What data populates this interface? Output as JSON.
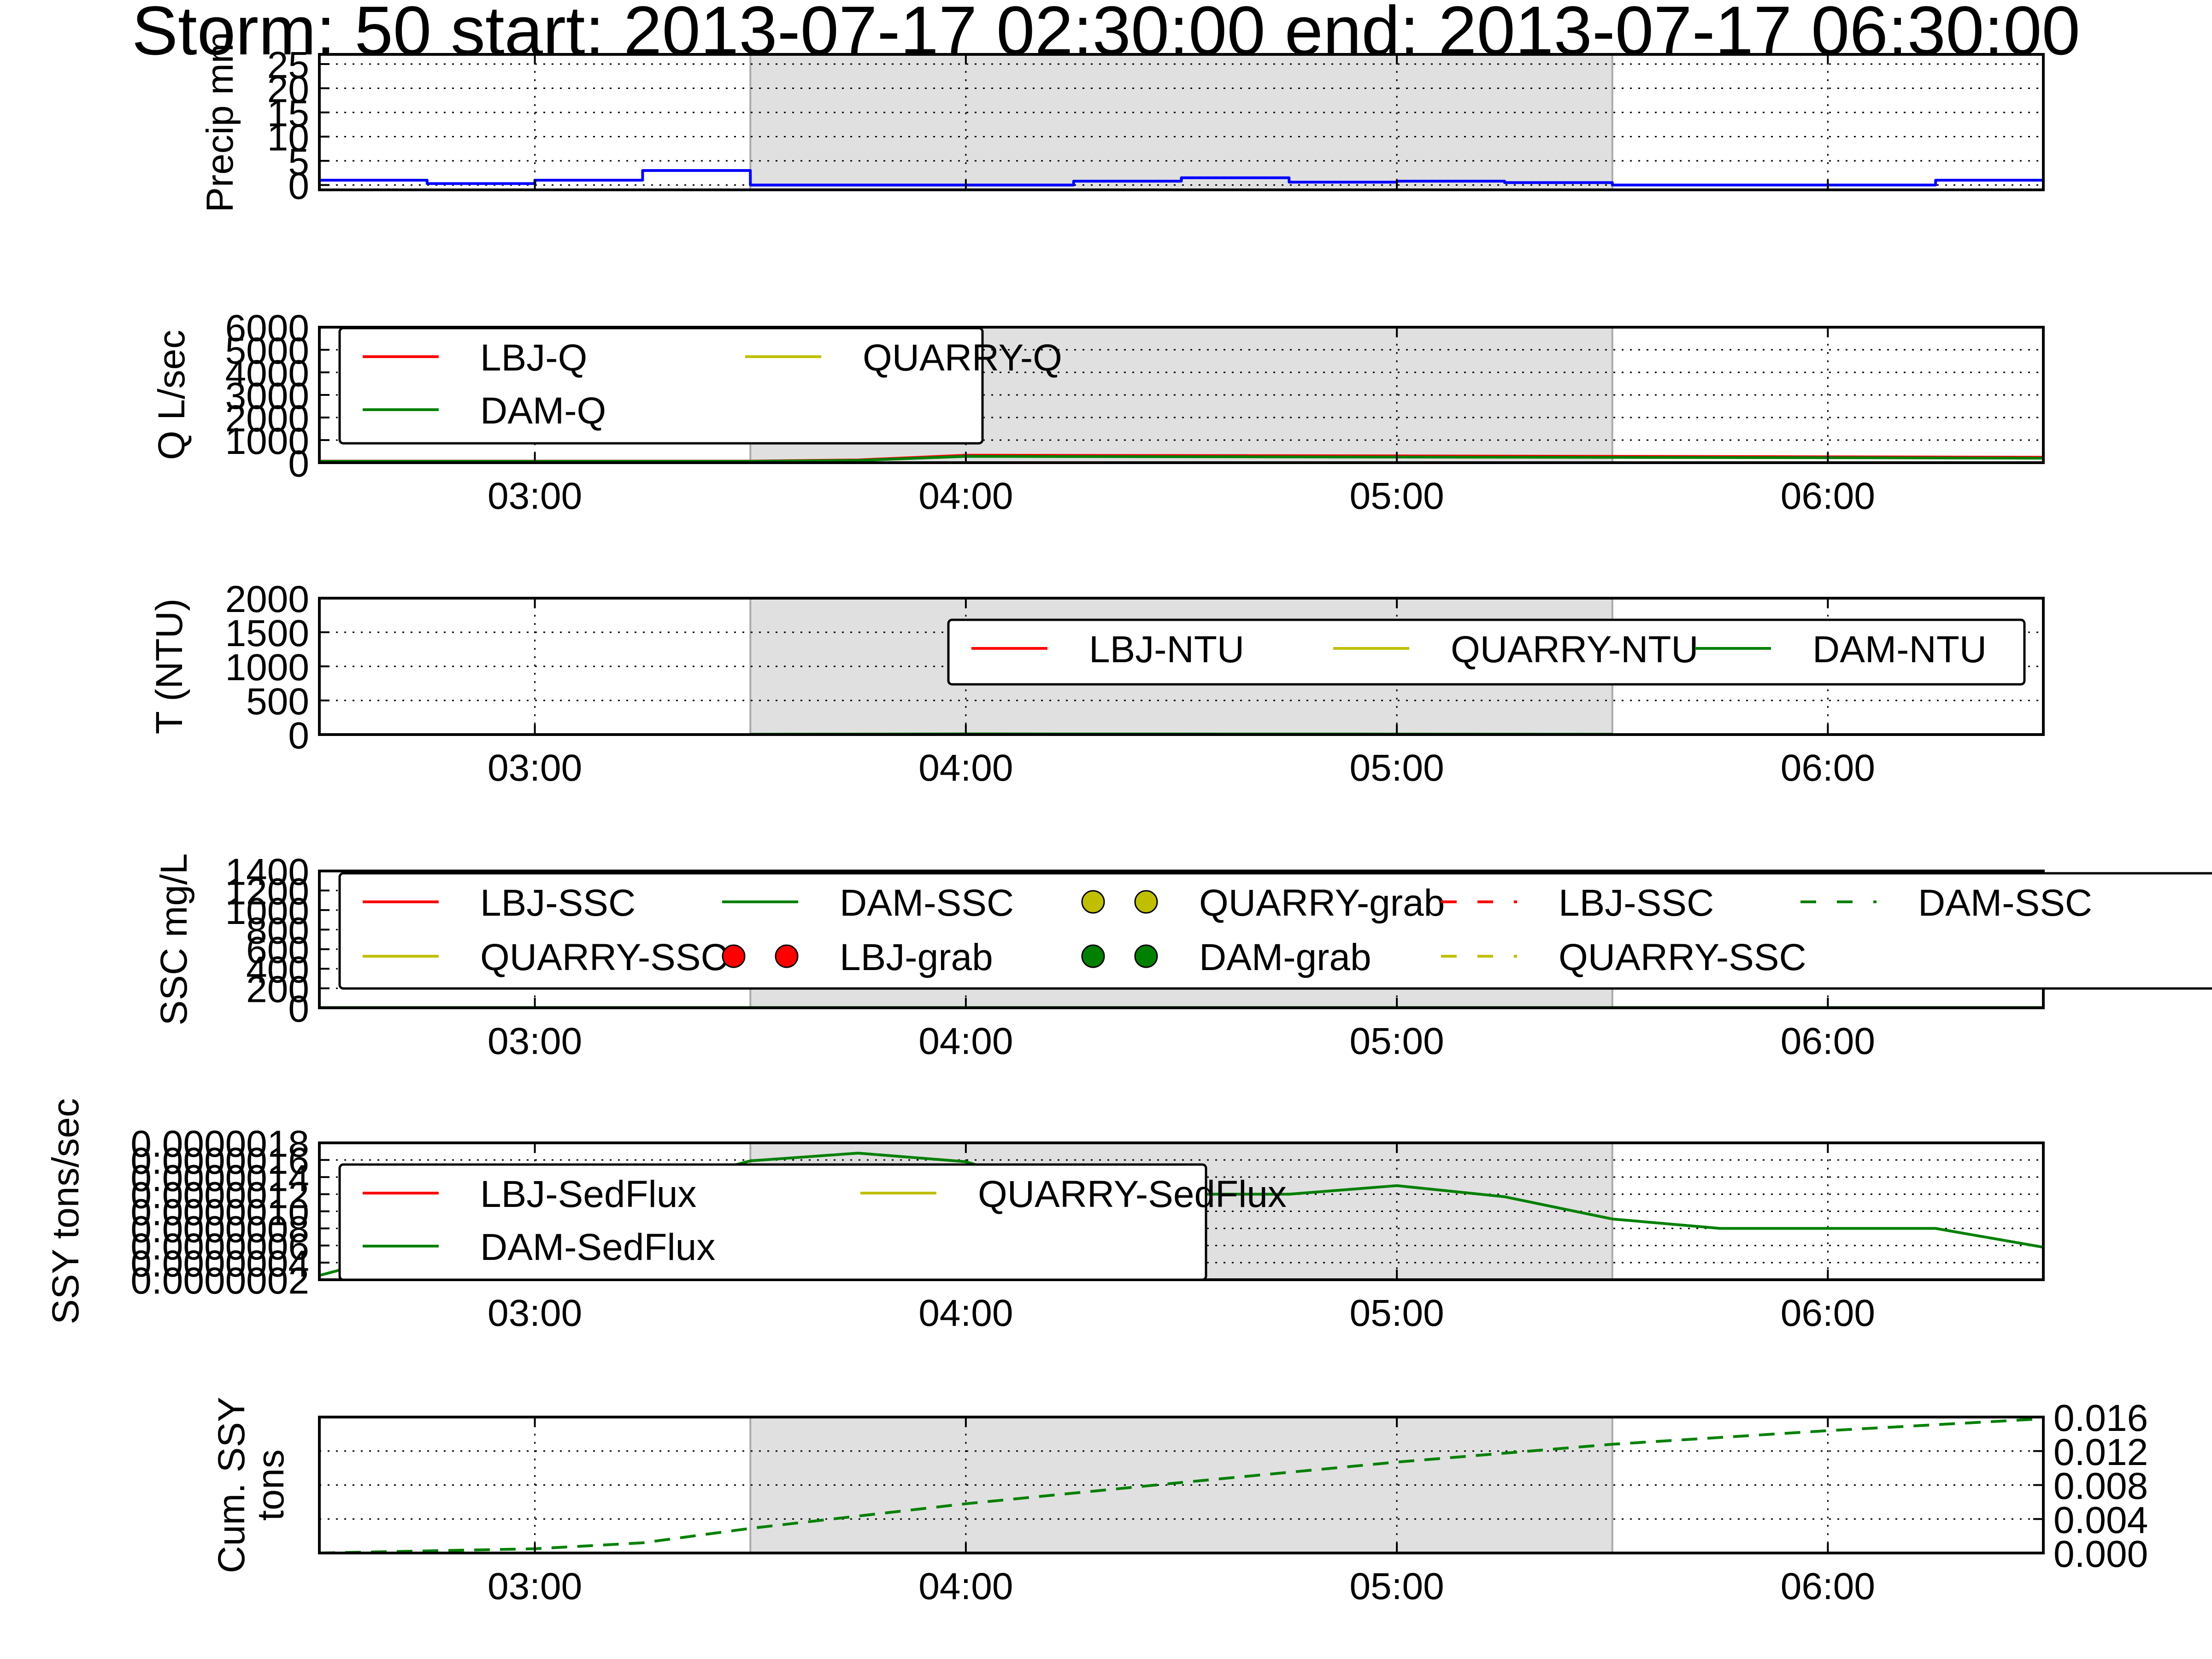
{
  "title": "Storm: 50 start: 2013-07-17 02:30:00 end: 2013-07-17 06:30:00",
  "time_axis": {
    "start": "02:30",
    "end": "06:30",
    "ticks": [
      "03:00",
      "04:00",
      "05:00",
      "06:00"
    ]
  },
  "shaded_interval": {
    "start": "03:30",
    "end": "05:30"
  },
  "colors": {
    "LBJ": "#ff0000",
    "QUARRY": "#bfbf00",
    "DAM": "#008000",
    "precip": "#0000ff",
    "shade": "#e0e0e0"
  },
  "chart_data": [
    {
      "id": "precip",
      "type": "line",
      "drawstyle": "steps-post",
      "ylabel": "Precip mm",
      "yticks": [
        "0",
        "5",
        "10",
        "15",
        "20",
        "25"
      ],
      "ylim": [
        -1,
        27
      ],
      "show_xticklabels": false,
      "legend": [],
      "series": [
        {
          "color": "#0000ff",
          "x": [
            "02:30",
            "02:45",
            "03:00",
            "03:15",
            "03:30",
            "03:45",
            "04:00",
            "04:15",
            "04:30",
            "04:45",
            "05:00",
            "05:15",
            "05:30",
            "05:45",
            "06:00",
            "06:15",
            "06:30"
          ],
          "y": [
            1.0,
            0.3,
            1.0,
            3.0,
            0.0,
            0.0,
            0.0,
            0.8,
            1.5,
            0.6,
            0.8,
            0.5,
            0.0,
            0.0,
            0.0,
            1.0,
            1.0
          ]
        }
      ]
    },
    {
      "id": "q",
      "type": "line",
      "ylabel": "Q L/sec",
      "yticks": [
        "0",
        "1000",
        "2000",
        "3000",
        "4000",
        "5000",
        "6000"
      ],
      "ylim": [
        0,
        6000
      ],
      "show_xticklabels": true,
      "legend": [
        {
          "label": "LBJ-Q",
          "color": "#ff0000",
          "style": "line"
        },
        {
          "label": "DAM-Q",
          "color": "#008000",
          "style": "line"
        },
        {
          "label": "QUARRY-Q",
          "color": "#bfbf00",
          "style": "line"
        }
      ],
      "legend_cols": 2,
      "legend_loc": "upper left",
      "series": [
        {
          "name": "LBJ-Q",
          "color": "#ff0000",
          "x": [
            "02:30",
            "03:30",
            "03:45",
            "04:00",
            "05:00",
            "06:00",
            "06:30"
          ],
          "y": [
            70,
            70,
            120,
            330,
            300,
            260,
            240
          ]
        },
        {
          "name": "DAM-Q",
          "color": "#008000",
          "x": [
            "02:30",
            "03:30",
            "03:45",
            "04:00",
            "05:00",
            "06:00",
            "06:30"
          ],
          "y": [
            60,
            60,
            100,
            280,
            250,
            220,
            200
          ]
        }
      ]
    },
    {
      "id": "ntu",
      "type": "line",
      "ylabel": "T (NTU)",
      "yticks": [
        "0",
        "500",
        "1000",
        "1500",
        "2000"
      ],
      "ylim": [
        0,
        2000
      ],
      "show_xticklabels": true,
      "legend": [
        {
          "label": "LBJ-NTU",
          "color": "#ff0000",
          "style": "line"
        },
        {
          "label": "QUARRY-NTU",
          "color": "#bfbf00",
          "style": "line"
        },
        {
          "label": "DAM-NTU",
          "color": "#008000",
          "style": "line"
        }
      ],
      "legend_cols": 3,
      "legend_loc": "upper right",
      "series": [
        {
          "name": "DAM-NTU",
          "color": "#008000",
          "x": [
            "03:30",
            "04:00",
            "05:00",
            "05:30"
          ],
          "y": [
            5,
            10,
            8,
            5
          ]
        }
      ]
    },
    {
      "id": "ssc",
      "type": "line",
      "ylabel": "SSC mg/L",
      "yticks": [
        "0",
        "200",
        "400",
        "600",
        "800",
        "1000",
        "1200",
        "1400"
      ],
      "ylim": [
        0,
        1400
      ],
      "show_xticklabels": true,
      "legend": [
        {
          "label": "LBJ-SSC",
          "color": "#ff0000",
          "style": "line"
        },
        {
          "label": "QUARRY-SSC",
          "color": "#bfbf00",
          "style": "line"
        },
        {
          "label": "DAM-SSC",
          "color": "#008000",
          "style": "line"
        },
        {
          "label": "LBJ-grab",
          "color": "#ff0000",
          "style": "marker"
        },
        {
          "label": "QUARRY-grab",
          "color": "#bfbf00",
          "style": "marker"
        },
        {
          "label": "DAM-grab",
          "color": "#008000",
          "style": "marker"
        },
        {
          "label": "LBJ-SSC",
          "color": "#ff0000",
          "style": "dash"
        },
        {
          "label": "QUARRY-SSC",
          "color": "#bfbf00",
          "style": "dash"
        },
        {
          "label": "DAM-SSC",
          "color": "#008000",
          "style": "dash"
        }
      ],
      "legend_cols": 5,
      "legend_loc": "upper left",
      "series": [
        {
          "name": "DAM-SSC",
          "color": "#008000",
          "x": [
            "02:30",
            "06:30"
          ],
          "y": [
            3,
            3
          ]
        }
      ]
    },
    {
      "id": "sedflux",
      "type": "line",
      "ylabel": "SSY tons/sec",
      "yticks": [
        "0.0000002",
        "0.0000004",
        "0.0000006",
        "0.0000008",
        "0.0000010",
        "0.0000012",
        "0.0000014",
        "0.0000016",
        "0.0000018"
      ],
      "ylim": [
        2e-07,
        1.8e-06
      ],
      "show_xticklabels": true,
      "legend": [
        {
          "label": "LBJ-SedFlux",
          "color": "#ff0000",
          "style": "line"
        },
        {
          "label": "DAM-SedFlux",
          "color": "#008000",
          "style": "line"
        },
        {
          "label": "QUARRY-SedFlux",
          "color": "#bfbf00",
          "style": "line"
        }
      ],
      "legend_cols": 2,
      "legend_loc": "upper left",
      "series": [
        {
          "name": "DAM-SedFlux",
          "color": "#008000",
          "x": [
            "02:30",
            "03:30",
            "03:45",
            "04:00",
            "04:15",
            "04:30",
            "04:45",
            "05:00",
            "05:15",
            "05:30",
            "05:45",
            "06:00",
            "06:15",
            "06:30"
          ],
          "y": [
            2.5e-07,
            1.59e-06,
            1.68e-06,
            1.58e-06,
            1.2e-06,
            1.2e-06,
            1.2e-06,
            1.3e-06,
            1.17e-06,
            9.1e-07,
            8e-07,
            8e-07,
            8e-07,
            5.8e-07
          ]
        }
      ]
    },
    {
      "id": "cumssy",
      "type": "line",
      "ylabel_lines": [
        "Cum. SSY",
        "tons"
      ],
      "yticks": [
        "0.000",
        "0.004",
        "0.008",
        "0.012",
        "0.016"
      ],
      "ylim": [
        0,
        0.016
      ],
      "yaxis_side": "right",
      "show_xticklabels": true,
      "legend": [],
      "series": [
        {
          "color": "#008000",
          "dash": true,
          "x": [
            "02:30",
            "03:00",
            "03:15",
            "03:30",
            "04:00",
            "04:30",
            "05:00",
            "05:30",
            "06:00",
            "06:30"
          ],
          "y": [
            0.0,
            0.0005,
            0.0012,
            0.0029,
            0.0058,
            0.0083,
            0.0107,
            0.0128,
            0.0144,
            0.0158
          ]
        }
      ]
    }
  ]
}
